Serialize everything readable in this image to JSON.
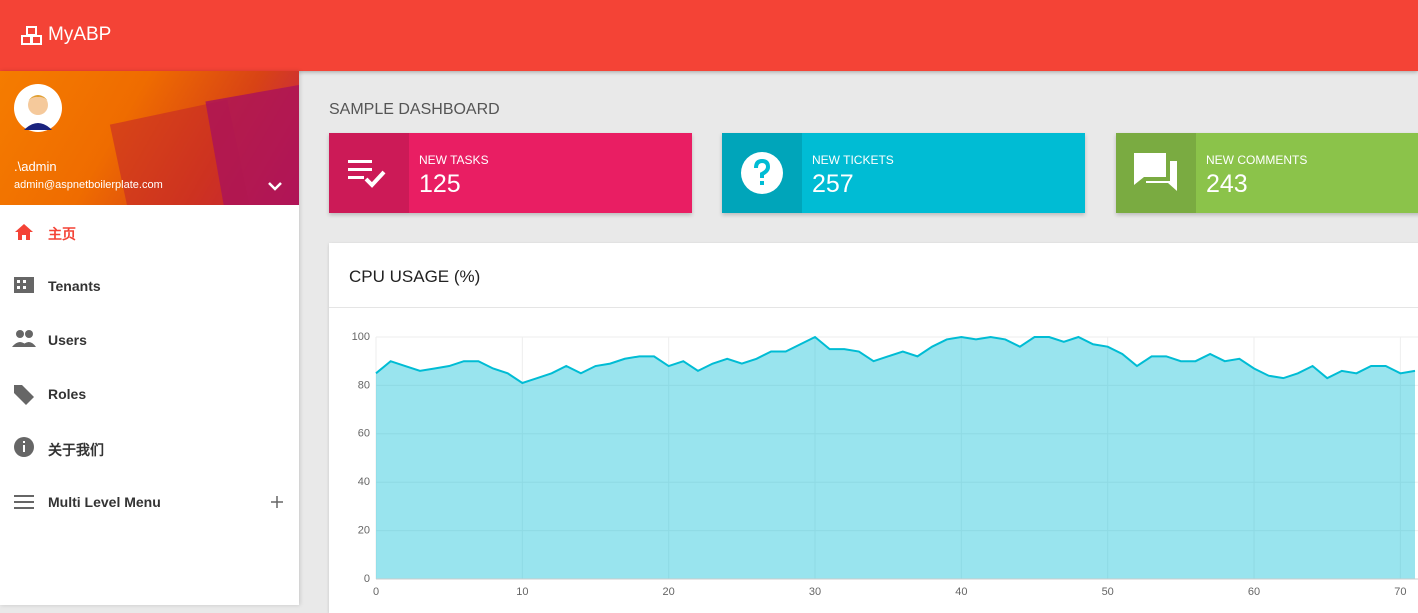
{
  "header": {
    "brand": "MyABP"
  },
  "user": {
    "name": ".\\admin",
    "email": "admin@aspnetboilerplate.com"
  },
  "menu": [
    "主页",
    "Tenants",
    "Users",
    "Roles",
    "关于我们",
    "Multi Level Menu"
  ],
  "page_title": "SAMPLE DASHBOARD",
  "info_boxes": [
    {
      "label": "NEW TASKS",
      "value": 125,
      "color": "#e91e63"
    },
    {
      "label": "NEW TICKETS",
      "value": 257,
      "color": "#00bcd4"
    },
    {
      "label": "NEW COMMENTS",
      "value": 243,
      "color": "#8bc34a"
    }
  ],
  "chart_data": {
    "type": "area",
    "title": "CPU USAGE (%)",
    "x": [
      0,
      1,
      2,
      3,
      4,
      5,
      6,
      7,
      8,
      9,
      10,
      11,
      12,
      13,
      14,
      15,
      16,
      17,
      18,
      19,
      20,
      21,
      22,
      23,
      24,
      25,
      26,
      27,
      28,
      29,
      30,
      31,
      32,
      33,
      34,
      35,
      36,
      37,
      38,
      39,
      40,
      41,
      42,
      43,
      44,
      45,
      46,
      47,
      48,
      49,
      50,
      51,
      52,
      53,
      54,
      55,
      56,
      57,
      58,
      59,
      60,
      61,
      62,
      63,
      64,
      65,
      66,
      67,
      68,
      69,
      70,
      71
    ],
    "series": [
      {
        "color": "#00bcd4",
        "values": [
          85,
          90,
          88,
          86,
          87,
          88,
          90,
          90,
          87,
          85,
          81,
          83,
          85,
          88,
          85,
          88,
          89,
          91,
          92,
          92,
          88,
          90,
          86,
          89,
          91,
          89,
          91,
          94,
          94,
          97,
          100,
          95,
          95,
          94,
          90,
          92,
          94,
          92,
          96,
          99,
          100,
          99,
          100,
          99,
          96,
          100,
          100,
          98,
          100,
          97,
          96,
          93,
          88,
          92,
          92,
          90,
          90,
          93,
          90,
          91,
          87,
          84,
          83,
          85,
          88,
          83,
          86,
          85,
          88,
          88,
          85,
          86
        ]
      }
    ],
    "xlim": [
      0,
      71
    ],
    "ylim": [
      0,
      100
    ],
    "xticks": [
      0,
      10,
      20,
      30,
      40,
      50,
      60,
      70
    ],
    "yticks": [
      0,
      20,
      40,
      60,
      80,
      100
    ],
    "grid": true
  }
}
